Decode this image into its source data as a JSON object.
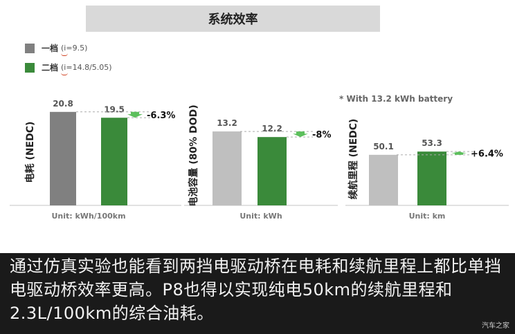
{
  "title": "系统效率",
  "legend": [
    {
      "label": "一档",
      "sub": "(i=9.5)",
      "color": "#808080"
    },
    {
      "label": "二档",
      "sub": "(i=14.8/5.05)",
      "color": "#3a8a3a"
    }
  ],
  "note": "* With 13.2 kWh battery",
  "chart_data": [
    {
      "type": "bar",
      "ylabel": "电耗 (NEDC)",
      "unit": "Unit: kWh/100km",
      "categories": [
        "一档",
        "二档"
      ],
      "values": [
        20.8,
        19.5
      ],
      "value_labels": [
        "20.8",
        "19.5"
      ],
      "change": "-6.3%",
      "direction": "down"
    },
    {
      "type": "bar",
      "ylabel": "电池容量 (80% DOD)",
      "unit": "Unit: kWh",
      "categories": [
        "一档",
        "二档"
      ],
      "values": [
        13.2,
        12.2
      ],
      "value_labels": [
        "13.2",
        "12.2"
      ],
      "change": "-8%",
      "direction": "down"
    },
    {
      "type": "bar",
      "ylabel": "续航里程 (NEDC)",
      "unit": "Unit: km",
      "categories": [
        "一档",
        "二档"
      ],
      "values": [
        50.1,
        53.3
      ],
      "value_labels": [
        "50.1",
        "53.3"
      ],
      "change": "+6.4%",
      "direction": "up"
    }
  ],
  "caption": "通过仿真实验也能看到两挡电驱动桥在电耗和续航里程上都比单挡电驱动桥效率更高。P8也得以实现纯电50km的续航里程和2.3L/100km的综合油耗。",
  "watermark": "汽车之家",
  "colors": {
    "gear1_panel1": "#808080",
    "gear1_other": "#bfbfbf",
    "gear2": "#3a8a3a",
    "arrow": "#5cbf5c"
  }
}
